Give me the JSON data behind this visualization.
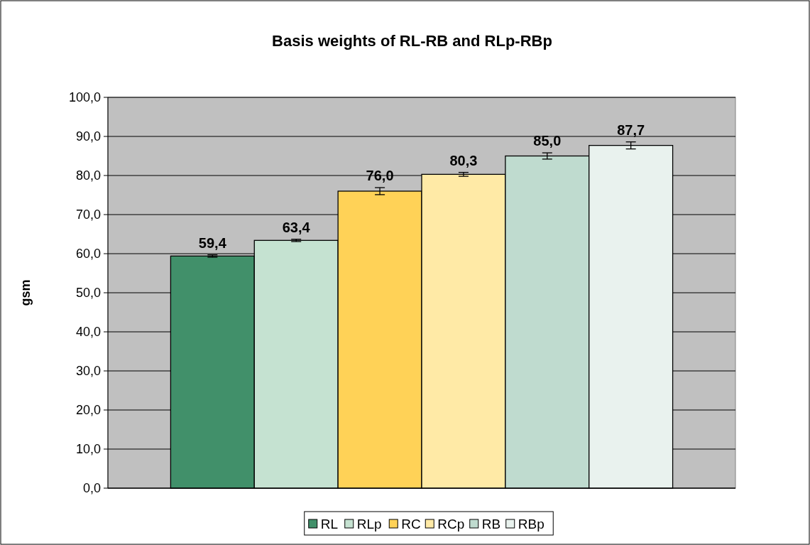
{
  "chart_data": {
    "type": "bar",
    "title": "Basis weights of RL-RB and RLp-RBp",
    "ylabel": "gsm",
    "categories": [
      null
    ],
    "series": [
      {
        "name": "RL",
        "color": "#41906a",
        "values": [
          59.4
        ],
        "errors": [
          0.3
        ]
      },
      {
        "name": "RLp",
        "color": "#c5e2d1",
        "values": [
          63.4
        ],
        "errors": [
          0.3
        ]
      },
      {
        "name": "RC",
        "color": "#ffd257",
        "values": [
          76.0
        ],
        "errors": [
          0.9
        ]
      },
      {
        "name": "RCp",
        "color": "#ffeaa6",
        "values": [
          80.3
        ],
        "errors": [
          0.5
        ]
      },
      {
        "name": "RB",
        "color": "#bfdbcf",
        "values": [
          85.0
        ],
        "errors": [
          0.8
        ]
      },
      {
        "name": "RBp",
        "color": "#e9f2ee",
        "values": [
          87.7
        ],
        "errors": [
          0.9
        ]
      }
    ],
    "ylim": [
      0,
      100
    ],
    "yticks": [
      {
        "value": 0,
        "label": "0,0"
      },
      {
        "value": 10,
        "label": "10,0"
      },
      {
        "value": 20,
        "label": "20,0"
      },
      {
        "value": 30,
        "label": "30,0"
      },
      {
        "value": 40,
        "label": "40,0"
      },
      {
        "value": 50,
        "label": "50,0"
      },
      {
        "value": 60,
        "label": "60,0"
      },
      {
        "value": 70,
        "label": "70,0"
      },
      {
        "value": 80,
        "label": "80,0"
      },
      {
        "value": 90,
        "label": "90,0"
      },
      {
        "value": 100,
        "label": "100,0"
      }
    ],
    "value_labels": [
      "59,4",
      "63,4",
      "76,0",
      "80,3",
      "85,0",
      "87,7"
    ],
    "grid": "y",
    "legend": "bottom"
  }
}
